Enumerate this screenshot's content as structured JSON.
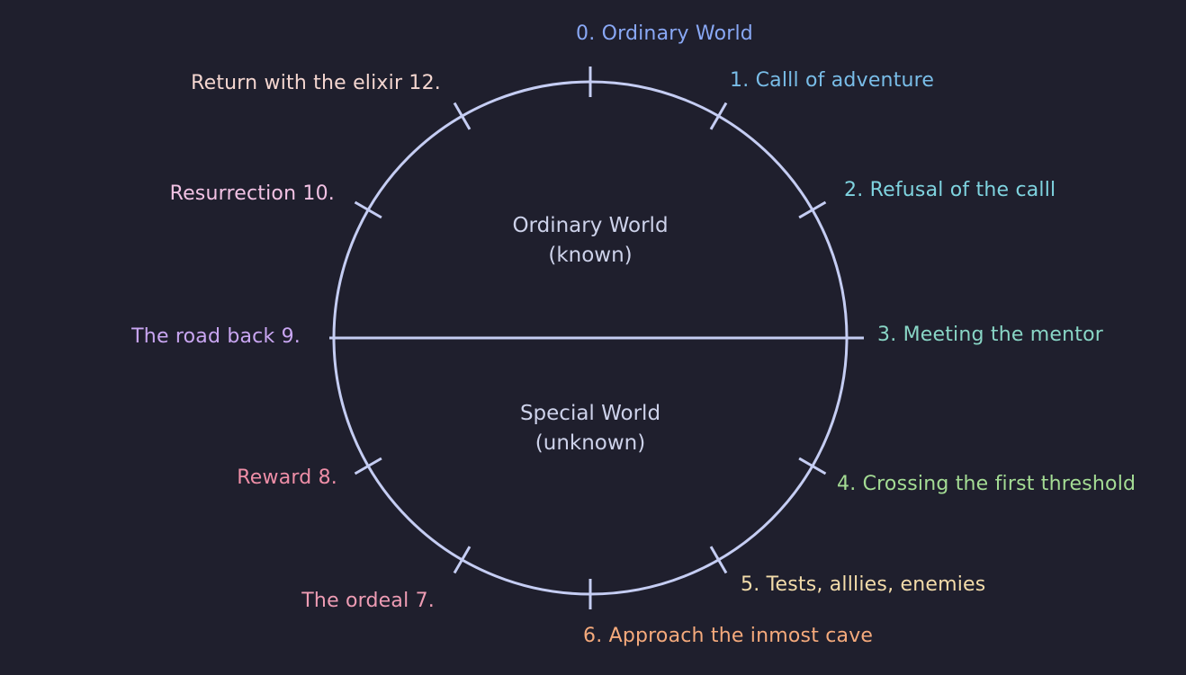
{
  "colors": {
    "background": "#1f1f2d",
    "circle": "#c5cdf3",
    "center_text": "#cdd2ea"
  },
  "regions": {
    "upper": {
      "line1": "Ordinary World",
      "line2": "(known)"
    },
    "lower": {
      "line1": "Special World",
      "line2": "(unknown)"
    }
  },
  "stages": [
    {
      "id": "stage-0",
      "label": "0. Ordinary World",
      "color": "#89a8f5"
    },
    {
      "id": "stage-1",
      "label": "1. Calll of adventure",
      "color": "#79bde8"
    },
    {
      "id": "stage-2",
      "label": "2. Refusal of the calll",
      "color": "#7fd3df"
    },
    {
      "id": "stage-3",
      "label": "3. Meeting the mentor",
      "color": "#89d6c6"
    },
    {
      "id": "stage-4",
      "label": "4. Crossing the first threshold",
      "color": "#a4dc94"
    },
    {
      "id": "stage-5",
      "label": "5. Tests, alllies, enemies",
      "color": "#f3dcaa"
    },
    {
      "id": "stage-6",
      "label": "6. Approach the inmost cave",
      "color": "#f5aa7c"
    },
    {
      "id": "stage-7",
      "label": "The ordeal  7.",
      "color": "#ee9cb4"
    },
    {
      "id": "stage-8",
      "label": "Reward 8.",
      "color": "#ee8ea7"
    },
    {
      "id": "stage-9",
      "label": "The road back 9.",
      "color": "#c9a6f2"
    },
    {
      "id": "stage-10",
      "label": "Resurrection 10.",
      "color": "#f2c2e4"
    },
    {
      "id": "stage-12",
      "label": "Return with the elixir  12.",
      "color": "#f4d6d0"
    }
  ]
}
